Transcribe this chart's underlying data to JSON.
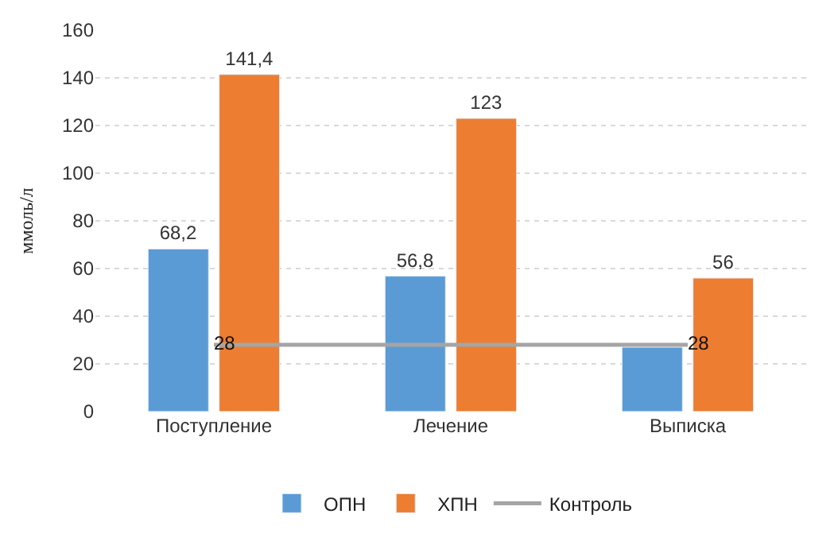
{
  "chart_data": {
    "type": "bar",
    "ylabel": "ммоль/л",
    "categories": [
      "Поступление",
      "Лечение",
      "Выписка"
    ],
    "series": [
      {
        "name": "ОПН",
        "color": "#5b9bd5",
        "values": [
          68.2,
          56.8,
          27
        ],
        "value_labels": [
          "68,2",
          "56,8",
          null
        ]
      },
      {
        "name": "ХПН",
        "color": "#ed7d31",
        "values": [
          141.4,
          123,
          56
        ],
        "value_labels": [
          "141,4",
          "123",
          "56"
        ]
      },
      {
        "name": "Контроль",
        "type": "line",
        "color": "#a5a5a5",
        "values": [
          28,
          28,
          28
        ],
        "value_labels": [
          "28",
          null,
          "28"
        ]
      }
    ],
    "ylim": [
      0,
      160
    ],
    "yticks": [
      0,
      20,
      40,
      60,
      80,
      100,
      120,
      140,
      160
    ],
    "grid": "y",
    "legend": "bottom"
  }
}
